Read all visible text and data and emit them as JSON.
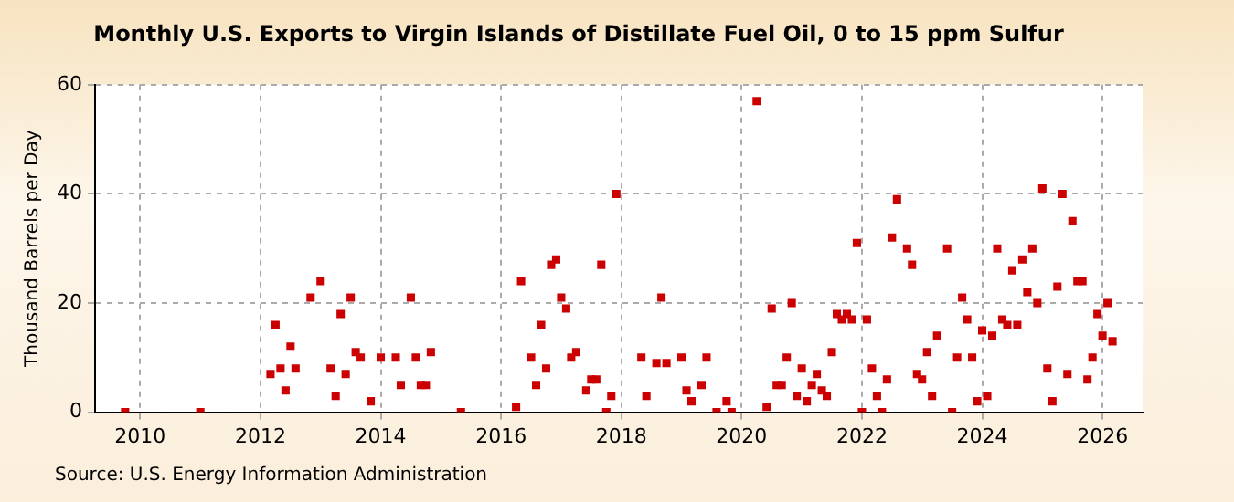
{
  "chart_data": {
    "type": "scatter",
    "title": "Monthly U.S. Exports to Virgin Islands of Distillate Fuel Oil, 0 to 15 ppm Sulfur",
    "ylabel": "Thousand Barrels per Day",
    "annotations": [
      "Source: U.S. Energy Information Administration"
    ],
    "x": [
      "2009-10",
      "2011-01",
      "2012-03",
      "2012-04",
      "2012-05",
      "2012-06",
      "2012-07",
      "2012-08",
      "2012-11",
      "2013-01",
      "2013-03",
      "2013-04",
      "2013-05",
      "2013-06",
      "2013-07",
      "2013-08",
      "2013-09",
      "2013-11",
      "2014-01",
      "2014-04",
      "2014-05",
      "2014-07",
      "2014-08",
      "2014-09",
      "2014-10",
      "2014-11",
      "2015-05",
      "2016-04",
      "2016-05",
      "2016-07",
      "2016-08",
      "2016-09",
      "2016-10",
      "2016-11",
      "2016-12",
      "2017-01",
      "2017-02",
      "2017-03",
      "2017-04",
      "2017-06",
      "2017-07",
      "2017-08",
      "2017-09",
      "2017-10",
      "2017-11",
      "2017-12",
      "2018-05",
      "2018-06",
      "2018-08",
      "2018-09",
      "2018-10",
      "2019-01",
      "2019-02",
      "2019-03",
      "2019-05",
      "2019-06",
      "2019-08",
      "2019-10",
      "2019-11",
      "2020-04",
      "2020-06",
      "2020-07",
      "2020-08",
      "2020-09",
      "2020-10",
      "2020-11",
      "2020-12",
      "2021-01",
      "2021-02",
      "2021-03",
      "2021-04",
      "2021-05",
      "2021-06",
      "2021-07",
      "2021-08",
      "2021-09",
      "2021-10",
      "2021-11",
      "2021-12",
      "2022-01",
      "2022-02",
      "2022-03",
      "2022-04",
      "2022-05",
      "2022-06",
      "2022-07",
      "2022-08",
      "2022-10",
      "2022-11",
      "2022-12",
      "2023-01",
      "2023-02",
      "2023-03",
      "2023-04",
      "2023-06",
      "2023-07",
      "2023-08",
      "2023-09",
      "2023-10",
      "2023-11",
      "2023-12",
      "2024-01",
      "2024-02",
      "2024-03",
      "2024-04",
      "2024-05",
      "2024-06",
      "2024-07",
      "2024-08",
      "2024-09",
      "2024-10",
      "2024-11",
      "2024-12",
      "2025-01",
      "2025-02",
      "2025-03",
      "2025-04",
      "2025-05",
      "2025-06",
      "2025-07",
      "2025-08",
      "2025-09",
      "2025-10",
      "2025-11",
      "2025-12",
      "2026-01",
      "2026-02",
      "2026-03"
    ],
    "series": [
      {
        "color": "#cc0000",
        "values": [
          0,
          0,
          7,
          16,
          8,
          4,
          12,
          8,
          21,
          24,
          8,
          3,
          18,
          7,
          21,
          11,
          10,
          2,
          10,
          10,
          5,
          21,
          10,
          5,
          5,
          11,
          0,
          1,
          24,
          10,
          5,
          16,
          8,
          27,
          28,
          21,
          19,
          10,
          11,
          4,
          6,
          6,
          27,
          0,
          3,
          40,
          10,
          3,
          9,
          21,
          9,
          10,
          4,
          2,
          5,
          10,
          0,
          2,
          0,
          57,
          1,
          19,
          5,
          5,
          10,
          20,
          3,
          8,
          2,
          5,
          7,
          4,
          3,
          11,
          18,
          17,
          18,
          17,
          31,
          0,
          17,
          8,
          3,
          0,
          6,
          32,
          39,
          30,
          27,
          7,
          6,
          11,
          3,
          14,
          30,
          0,
          10,
          21,
          17,
          10,
          2,
          15,
          3,
          14,
          30,
          17,
          16,
          26,
          16,
          28,
          22,
          30,
          20,
          41,
          8,
          2,
          23,
          40,
          7,
          35,
          24,
          24,
          6,
          10,
          18,
          14,
          20,
          13
        ]
      }
    ],
    "xlim": [
      "2009-04",
      "2026-09"
    ],
    "xticks": [
      "2010",
      "2012",
      "2014",
      "2016",
      "2018",
      "2020",
      "2022",
      "2024",
      "2026"
    ],
    "ylim": [
      0,
      60
    ],
    "yticks": [
      0,
      20,
      40,
      60
    ],
    "grid": true,
    "marker": "square",
    "legend": false
  }
}
